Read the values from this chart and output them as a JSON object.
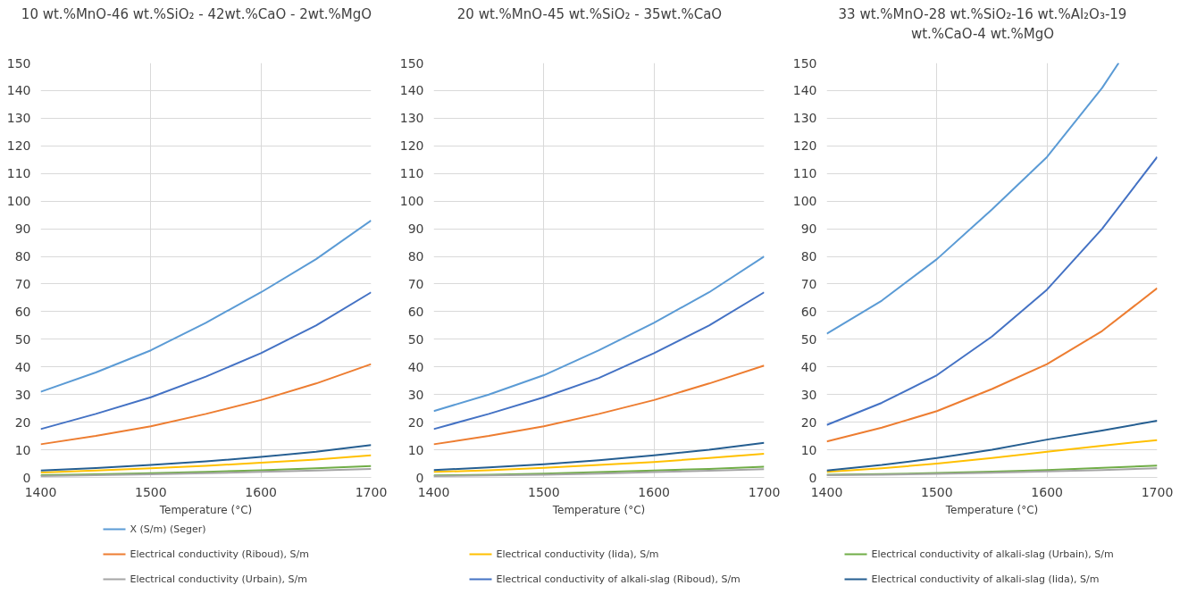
{
  "chart_data": [
    {
      "type": "line",
      "title": "10 wt.%MnO-46 wt.%SiO₂ - 42wt.%CaO - 2wt.%MgO",
      "xlabel": "Temperature (°C)",
      "x": [
        1400,
        1450,
        1500,
        1550,
        1600,
        1650,
        1700
      ],
      "xlim": [
        1400,
        1700
      ],
      "xticks": [
        1400,
        1500,
        1600,
        1700
      ],
      "ylim": [
        0,
        150
      ],
      "yticks": [
        0,
        10,
        20,
        30,
        40,
        50,
        60,
        70,
        80,
        90,
        100,
        110,
        120,
        130,
        140,
        150
      ],
      "grid": true,
      "legend": "bottom",
      "series": [
        {
          "name": "X (S/m) (Seger)",
          "color": "#5b9bd5",
          "values": [
            31,
            38,
            46,
            56,
            67,
            79,
            93
          ]
        },
        {
          "name": "Electrical conductivity (Riboud), S/m",
          "color": "#ed7d31",
          "values": [
            12,
            15,
            18.5,
            23,
            28,
            34,
            41
          ]
        },
        {
          "name": "Electrical conductivity (Iida), S/m",
          "color": "#ffc000",
          "values": [
            1.8,
            2.5,
            3.3,
            4.2,
            5.3,
            6.5,
            8
          ]
        },
        {
          "name": "Electrical conductivity of alkali-slag (Urbain), S/m",
          "color": "#70ad47",
          "values": [
            0.8,
            1.1,
            1.5,
            2,
            2.6,
            3.3,
            4.1
          ]
        },
        {
          "name": "Electrical conductivity (Urbain), S/m",
          "color": "#a5a5a5",
          "values": [
            0.5,
            0.8,
            1.1,
            1.5,
            2,
            2.5,
            3.1
          ]
        },
        {
          "name": "Electrical conductivity of alkali-slag (Riboud), S/m",
          "color": "#4472c4",
          "values": [
            17.5,
            23,
            29,
            36.5,
            45,
            55,
            67
          ]
        },
        {
          "name": "Electrical conductivity of alkali-slag (Iida), S/m",
          "color": "#255e91",
          "values": [
            2.5,
            3.4,
            4.5,
            5.8,
            7.4,
            9.3,
            11.7
          ]
        }
      ]
    },
    {
      "type": "line",
      "title": "20 wt.%MnO-45 wt.%SiO₂ - 35wt.%CaO",
      "xlabel": "Temperature (°C)",
      "x": [
        1400,
        1450,
        1500,
        1550,
        1600,
        1650,
        1700
      ],
      "xlim": [
        1400,
        1700
      ],
      "xticks": [
        1400,
        1500,
        1600,
        1700
      ],
      "ylim": [
        0,
        150
      ],
      "yticks": [
        0,
        10,
        20,
        30,
        40,
        50,
        60,
        70,
        80,
        90,
        100,
        110,
        120,
        130,
        140,
        150
      ],
      "grid": true,
      "series": [
        {
          "color": "#5b9bd5",
          "values": [
            24,
            30,
            37,
            46,
            56,
            67,
            80
          ]
        },
        {
          "color": "#ed7d31",
          "values": [
            12,
            15,
            18.5,
            23,
            28,
            34,
            40.5
          ]
        },
        {
          "color": "#ffc000",
          "values": [
            2,
            2.6,
            3.5,
            4.5,
            5.6,
            7,
            8.6
          ]
        },
        {
          "color": "#70ad47",
          "values": [
            0.7,
            1,
            1.4,
            1.9,
            2.5,
            3.1,
            3.9
          ]
        },
        {
          "color": "#a5a5a5",
          "values": [
            0.5,
            0.7,
            1,
            1.4,
            1.9,
            2.4,
            3
          ]
        },
        {
          "color": "#4472c4",
          "values": [
            17.5,
            23,
            29,
            36,
            45,
            55,
            67
          ]
        },
        {
          "color": "#255e91",
          "values": [
            2.7,
            3.6,
            4.8,
            6.2,
            8,
            10,
            12.5
          ]
        }
      ]
    },
    {
      "type": "line",
      "title": "33 wt.%MnO-28 wt.%SiO₂-16 wt.%Al₂O₃-19 wt.%CaO-4 wt.%MgO",
      "xlabel": "Temperature (°C)",
      "x": [
        1400,
        1450,
        1500,
        1550,
        1600,
        1650,
        1700
      ],
      "xlim": [
        1400,
        1700
      ],
      "xticks": [
        1400,
        1500,
        1600,
        1700
      ],
      "ylim": [
        0,
        150
      ],
      "yticks": [
        0,
        10,
        20,
        30,
        40,
        50,
        60,
        70,
        80,
        90,
        100,
        110,
        120,
        130,
        140,
        150
      ],
      "grid": true,
      "series": [
        {
          "color": "#5b9bd5",
          "x": [
            1400,
            1450,
            1500,
            1550,
            1600,
            1650,
            1665
          ],
          "values": [
            52,
            64,
            79,
            97,
            116,
            141,
            150
          ]
        },
        {
          "color": "#ed7d31",
          "values": [
            13,
            18,
            24,
            32,
            41,
            53,
            68.5
          ]
        },
        {
          "color": "#ffc000",
          "values": [
            2,
            3.3,
            5,
            7,
            9.3,
            11.5,
            13.5
          ]
        },
        {
          "color": "#70ad47",
          "values": [
            1,
            1.2,
            1.6,
            2.1,
            2.7,
            3.5,
            4.3
          ]
        },
        {
          "color": "#a5a5a5",
          "values": [
            0.8,
            1,
            1.3,
            1.7,
            2.2,
            2.7,
            3.3
          ]
        },
        {
          "color": "#4472c4",
          "values": [
            19,
            27,
            37,
            51,
            68,
            90,
            116
          ]
        },
        {
          "color": "#255e91",
          "values": [
            2.5,
            4.5,
            7,
            10,
            13.7,
            17,
            20.5
          ]
        }
      ]
    }
  ]
}
